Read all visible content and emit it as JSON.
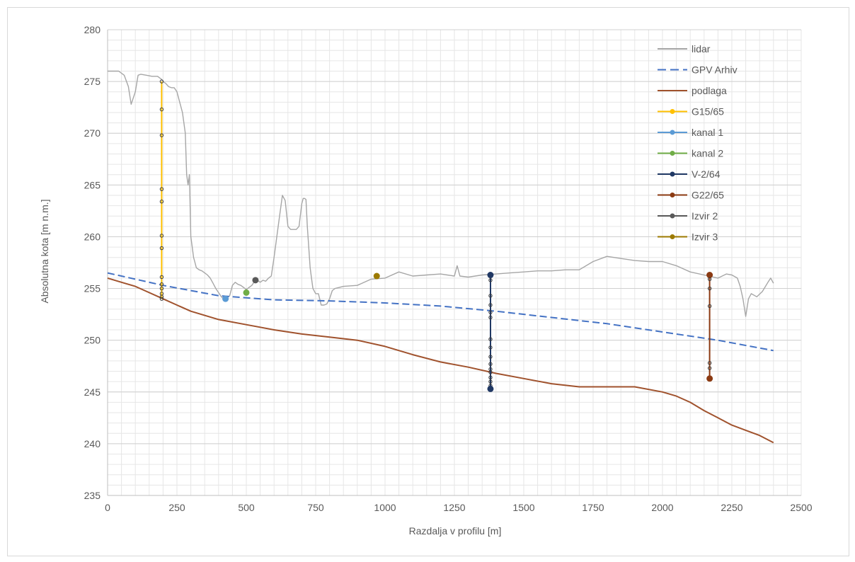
{
  "chart_data": {
    "type": "line",
    "title": "",
    "xlabel": "Razdalja v profilu [m]",
    "ylabel": "Absolutna kota [m n.m.]",
    "xlim": [
      0,
      2500
    ],
    "ylim": [
      235,
      280
    ],
    "xticks": [
      0,
      250,
      500,
      750,
      1000,
      1250,
      1500,
      1750,
      2000,
      2250,
      2500
    ],
    "yticks": [
      235,
      240,
      245,
      250,
      255,
      260,
      265,
      270,
      275,
      280
    ],
    "grid": true,
    "legend_position": "top-right",
    "series": [
      {
        "name": "lidar",
        "color": "#a6a6a6",
        "style": "solid",
        "marker": "none",
        "x": [
          0,
          40,
          60,
          75,
          85,
          100,
          110,
          120,
          140,
          160,
          180,
          195,
          200,
          210,
          220,
          230,
          240,
          250,
          260,
          270,
          280,
          285,
          290,
          295,
          300,
          305,
          310,
          315,
          320,
          330,
          340,
          350,
          360,
          370,
          380,
          390,
          400,
          410,
          420,
          430,
          440,
          450,
          460,
          470,
          480,
          490,
          500,
          510,
          520,
          530,
          540,
          550,
          560,
          570,
          580,
          590,
          600,
          610,
          620,
          630,
          640,
          650,
          660,
          670,
          680,
          690,
          700,
          705,
          710,
          715,
          720,
          725,
          730,
          735,
          740,
          750,
          760,
          770,
          780,
          790,
          800,
          810,
          820,
          850,
          900,
          950,
          1000,
          1050,
          1100,
          1150,
          1200,
          1250,
          1260,
          1270,
          1300,
          1350,
          1400,
          1450,
          1500,
          1550,
          1600,
          1650,
          1700,
          1750,
          1800,
          1850,
          1900,
          1950,
          2000,
          2050,
          2100,
          2150,
          2200,
          2230,
          2250,
          2270,
          2280,
          2290,
          2300,
          2310,
          2320,
          2340,
          2360,
          2380,
          2390,
          2400
        ],
        "y": [
          276,
          276,
          275.6,
          274.5,
          272.8,
          274,
          275.6,
          275.7,
          275.6,
          275.5,
          275.5,
          275.2,
          275,
          274.8,
          274.5,
          274.4,
          274.4,
          274,
          273,
          272,
          270,
          266,
          265,
          266,
          260,
          259,
          258,
          257.5,
          257,
          256.8,
          256.7,
          256.5,
          256.3,
          256,
          255.5,
          255,
          254.6,
          254.2,
          254,
          254.1,
          254.3,
          255.3,
          255.6,
          255.4,
          255.3,
          255.1,
          254.9,
          255.1,
          255.3,
          255.7,
          255.8,
          255.6,
          255.8,
          255.7,
          256,
          256.2,
          258,
          260,
          262,
          264,
          263.5,
          261,
          260.7,
          260.7,
          260.7,
          261,
          263.2,
          263.7,
          263.7,
          263.6,
          261,
          259,
          257,
          256,
          255,
          254.5,
          254.5,
          253.4,
          253.4,
          253.5,
          254,
          254.8,
          255,
          255.2,
          255.3,
          255.9,
          256,
          256.6,
          256.2,
          256.3,
          256.4,
          256.2,
          257.2,
          256.2,
          256.1,
          256.3,
          256.4,
          256.5,
          256.6,
          256.7,
          256.7,
          256.8,
          256.8,
          257.6,
          258.1,
          257.9,
          257.7,
          257.6,
          257.6,
          257.2,
          256.6,
          256.3,
          256,
          256.4,
          256.3,
          256,
          255.2,
          254,
          252.3,
          254,
          254.5,
          254.2,
          254.7,
          255.6,
          256,
          255.5
        ]
      },
      {
        "name": "GPV Arhiv",
        "color": "#4472c4",
        "style": "dashed",
        "marker": "none",
        "x": [
          0,
          200,
          400,
          600,
          800,
          1000,
          1200,
          1400,
          1600,
          1800,
          2000,
          2200,
          2400
        ],
        "y": [
          256.5,
          255.3,
          254.3,
          253.9,
          253.8,
          253.6,
          253.3,
          252.8,
          252.2,
          251.6,
          250.8,
          250,
          249
        ]
      },
      {
        "name": "podlaga",
        "color": "#a0522d",
        "style": "solid",
        "marker": "none",
        "x": [
          0,
          50,
          100,
          150,
          200,
          250,
          300,
          350,
          400,
          500,
          600,
          700,
          800,
          900,
          1000,
          1100,
          1200,
          1300,
          1400,
          1500,
          1600,
          1700,
          1800,
          1900,
          2000,
          2050,
          2100,
          2150,
          2200,
          2250,
          2300,
          2350,
          2400
        ],
        "y": [
          256,
          255.6,
          255.2,
          254.6,
          254,
          253.4,
          252.8,
          252.4,
          252,
          251.5,
          251,
          250.6,
          250.3,
          250,
          249.4,
          248.6,
          247.9,
          247.4,
          246.8,
          246.3,
          245.8,
          245.5,
          245.5,
          245.5,
          245,
          244.6,
          244,
          243.2,
          242.5,
          241.8,
          241.3,
          240.8,
          240.1
        ]
      },
      {
        "name": "G15/65",
        "color": "#ffc000",
        "style": "solid",
        "marker": "circle",
        "x": [
          195,
          195,
          195,
          195,
          195,
          195,
          195,
          195,
          195,
          195,
          195,
          195,
          195
        ],
        "y": [
          275,
          272.3,
          269.8,
          264.6,
          263.4,
          260.1,
          258.9,
          256.1,
          255.4,
          255,
          254.5,
          254.2,
          254
        ]
      },
      {
        "name": "kanal 1",
        "color": "#5b9bd5",
        "style": "solid",
        "marker": "circle",
        "x": [
          425
        ],
        "y": [
          254
        ]
      },
      {
        "name": "kanal 2",
        "color": "#70ad47",
        "style": "solid",
        "marker": "circle",
        "x": [
          500
        ],
        "y": [
          254.6
        ]
      },
      {
        "name": "V-2/64",
        "color": "#203864",
        "style": "solid",
        "marker": "circle",
        "x": [
          1380,
          1380,
          1380,
          1380,
          1380,
          1380,
          1380,
          1380,
          1380,
          1380,
          1380,
          1380,
          1380,
          1380,
          1380,
          1380
        ],
        "y": [
          256.3,
          255.8,
          254.3,
          253.4,
          252.7,
          252.2,
          250.1,
          249.3,
          248.4,
          247.7,
          247.2,
          246.9,
          246.4,
          246,
          245.6,
          245.3
        ]
      },
      {
        "name": "G22/65",
        "color": "#8b3a12",
        "style": "solid",
        "marker": "circle",
        "x": [
          2170,
          2170,
          2170,
          2170,
          2170,
          2170,
          2170
        ],
        "y": [
          256.3,
          255.9,
          255,
          253.3,
          247.8,
          247.3,
          246.3
        ]
      },
      {
        "name": "Izvir 2",
        "color": "#595959",
        "style": "solid",
        "marker": "circle",
        "x": [
          533
        ],
        "y": [
          255.8
        ]
      },
      {
        "name": "Izvir 3",
        "color": "#9c7a00",
        "style": "solid",
        "marker": "circle",
        "x": [
          970
        ],
        "y": [
          256.2
        ]
      }
    ]
  }
}
